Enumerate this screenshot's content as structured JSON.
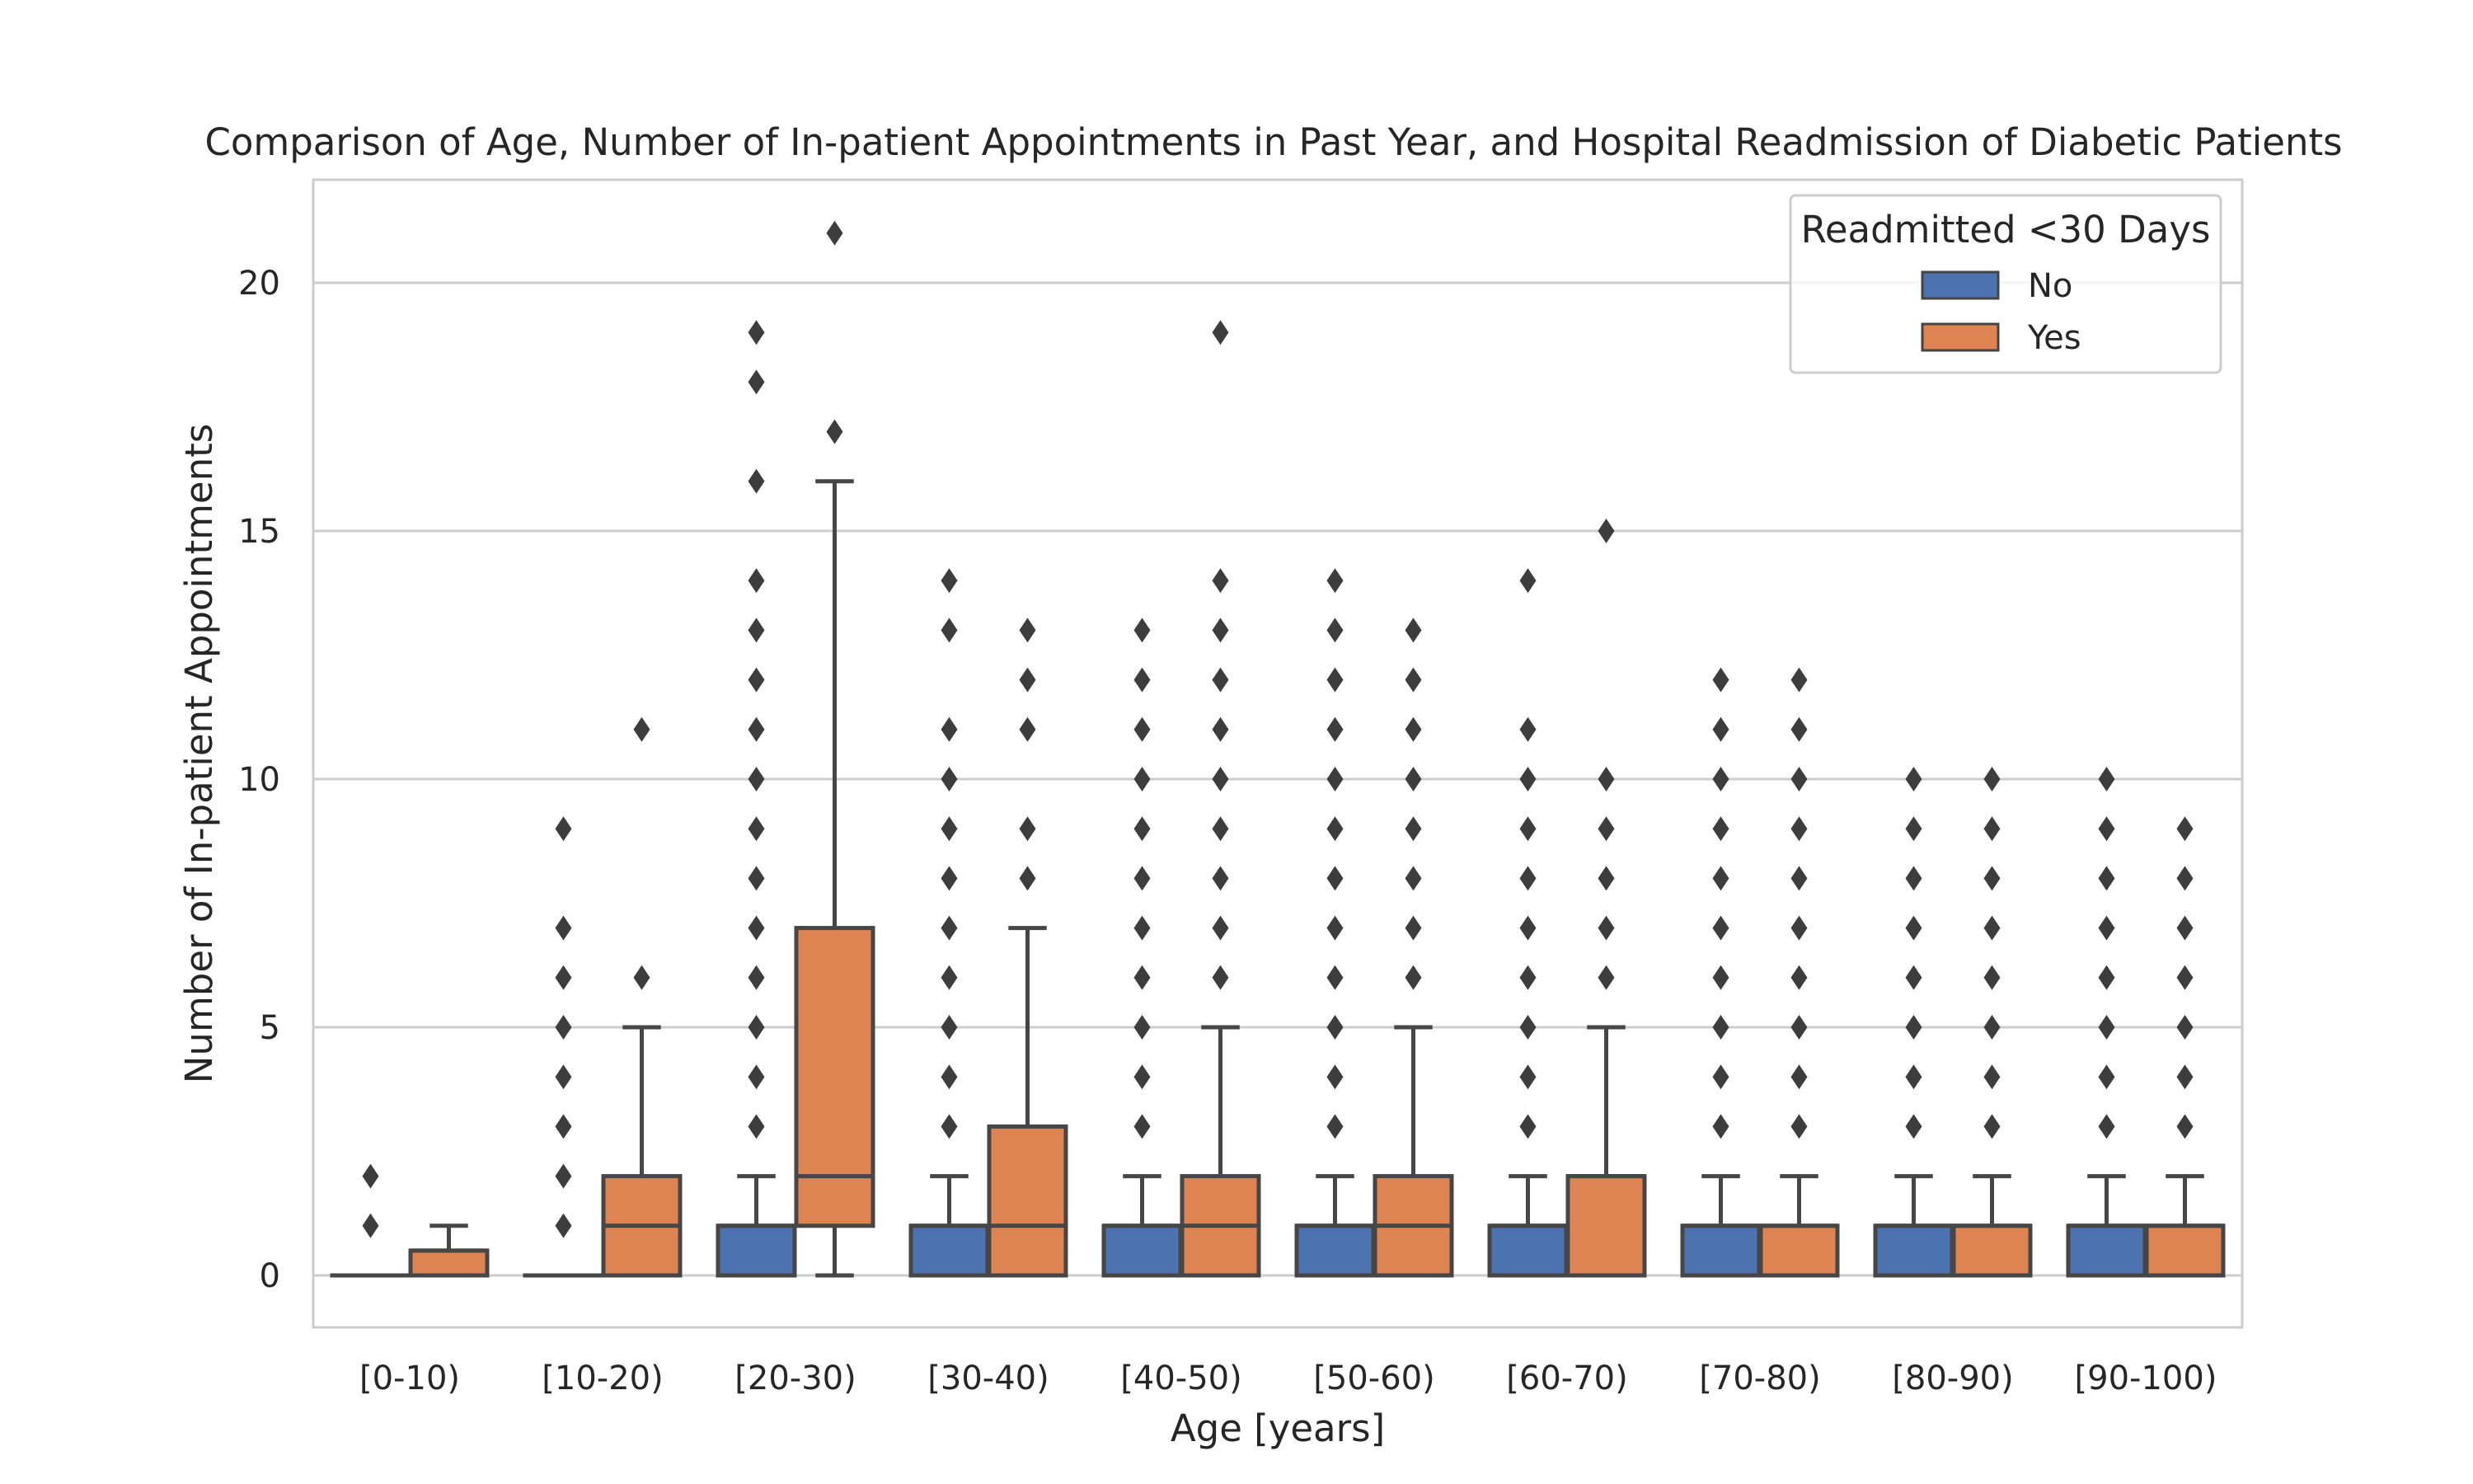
{
  "chart_data": {
    "type": "box",
    "title": "Comparison of Age, Number of In-patient Appointments in Past Year, and Hospital Readmission of Diabetic Patients",
    "xlabel": "Age [years]",
    "ylabel": "Number of In-patient Appointments",
    "ylim": [
      -1,
      22
    ],
    "yticks": [
      0,
      5,
      10,
      15,
      20
    ],
    "grid": true,
    "legend_title": "Readmitted <30 Days",
    "legend_position": "top-right",
    "categories": [
      "[0-10)",
      "[10-20)",
      "[20-30)",
      "[30-40)",
      "[40-50)",
      "[50-60)",
      "[60-70)",
      "[70-80)",
      "[80-90)",
      "[90-100)"
    ],
    "series": [
      {
        "name": "No",
        "color": "#4c72b0",
        "boxes": [
          {
            "q1": 0,
            "median": 0,
            "q3": 0,
            "whisker_low": 0,
            "whisker_high": 0,
            "outliers": [
              1,
              2
            ]
          },
          {
            "q1": 0,
            "median": 0,
            "q3": 0,
            "whisker_low": 0,
            "whisker_high": 0,
            "outliers": [
              1,
              2,
              3,
              4,
              5,
              6,
              7,
              9
            ]
          },
          {
            "q1": 0,
            "median": 1,
            "q3": 1,
            "whisker_low": 0,
            "whisker_high": 2,
            "outliers": [
              3,
              4,
              5,
              6,
              7,
              8,
              9,
              10,
              11,
              12,
              13,
              14,
              16,
              18,
              19
            ]
          },
          {
            "q1": 0,
            "median": 1,
            "q3": 1,
            "whisker_low": 0,
            "whisker_high": 2,
            "outliers": [
              3,
              4,
              5,
              6,
              7,
              8,
              9,
              10,
              11,
              13,
              14
            ]
          },
          {
            "q1": 0,
            "median": 1,
            "q3": 1,
            "whisker_low": 0,
            "whisker_high": 2,
            "outliers": [
              3,
              4,
              5,
              6,
              7,
              8,
              9,
              10,
              11,
              12,
              13
            ]
          },
          {
            "q1": 0,
            "median": 1,
            "q3": 1,
            "whisker_low": 0,
            "whisker_high": 2,
            "outliers": [
              3,
              4,
              5,
              6,
              7,
              8,
              9,
              10,
              11,
              12,
              13,
              14
            ]
          },
          {
            "q1": 0,
            "median": 1,
            "q3": 1,
            "whisker_low": 0,
            "whisker_high": 2,
            "outliers": [
              3,
              4,
              5,
              6,
              7,
              8,
              9,
              10,
              11,
              14
            ]
          },
          {
            "q1": 0,
            "median": 1,
            "q3": 1,
            "whisker_low": 0,
            "whisker_high": 2,
            "outliers": [
              3,
              4,
              5,
              6,
              7,
              8,
              9,
              10,
              11,
              12
            ]
          },
          {
            "q1": 0,
            "median": 1,
            "q3": 1,
            "whisker_low": 0,
            "whisker_high": 2,
            "outliers": [
              3,
              4,
              5,
              6,
              7,
              8,
              9,
              10
            ]
          },
          {
            "q1": 0,
            "median": 1,
            "q3": 1,
            "whisker_low": 0,
            "whisker_high": 2,
            "outliers": [
              3,
              4,
              5,
              6,
              7,
              8,
              9,
              10
            ]
          }
        ]
      },
      {
        "name": "Yes",
        "color": "#dd8452",
        "boxes": [
          {
            "q1": 0,
            "median": 0.5,
            "q3": 0.5,
            "whisker_low": 0,
            "whisker_high": 1,
            "outliers": []
          },
          {
            "q1": 0,
            "median": 1,
            "q3": 2,
            "whisker_low": 0,
            "whisker_high": 5,
            "outliers": [
              6,
              11
            ]
          },
          {
            "q1": 1,
            "median": 2,
            "q3": 7,
            "whisker_low": 0,
            "whisker_high": 16,
            "outliers": [
              17,
              21
            ]
          },
          {
            "q1": 0,
            "median": 1,
            "q3": 3,
            "whisker_low": 0,
            "whisker_high": 7,
            "outliers": [
              8,
              9,
              11,
              12,
              13
            ]
          },
          {
            "q1": 0,
            "median": 1,
            "q3": 2,
            "whisker_low": 0,
            "whisker_high": 5,
            "outliers": [
              6,
              7,
              8,
              9,
              10,
              11,
              12,
              13,
              14,
              19
            ]
          },
          {
            "q1": 0,
            "median": 1,
            "q3": 2,
            "whisker_low": 0,
            "whisker_high": 5,
            "outliers": [
              6,
              7,
              8,
              9,
              10,
              11,
              12,
              13
            ]
          },
          {
            "q1": 0,
            "median": 2,
            "q3": 2,
            "whisker_low": 0,
            "whisker_high": 5,
            "outliers": [
              6,
              7,
              8,
              9,
              10,
              15
            ]
          },
          {
            "q1": 0,
            "median": 1,
            "q3": 1,
            "whisker_low": 0,
            "whisker_high": 2,
            "outliers": [
              3,
              4,
              5,
              6,
              7,
              8,
              9,
              10,
              11,
              12
            ]
          },
          {
            "q1": 0,
            "median": 1,
            "q3": 1,
            "whisker_low": 0,
            "whisker_high": 2,
            "outliers": [
              3,
              4,
              5,
              6,
              7,
              8,
              9,
              10
            ]
          },
          {
            "q1": 0,
            "median": 1,
            "q3": 1,
            "whisker_low": 0,
            "whisker_high": 2,
            "outliers": [
              3,
              4,
              5,
              6,
              7,
              8,
              9
            ]
          }
        ]
      }
    ]
  }
}
